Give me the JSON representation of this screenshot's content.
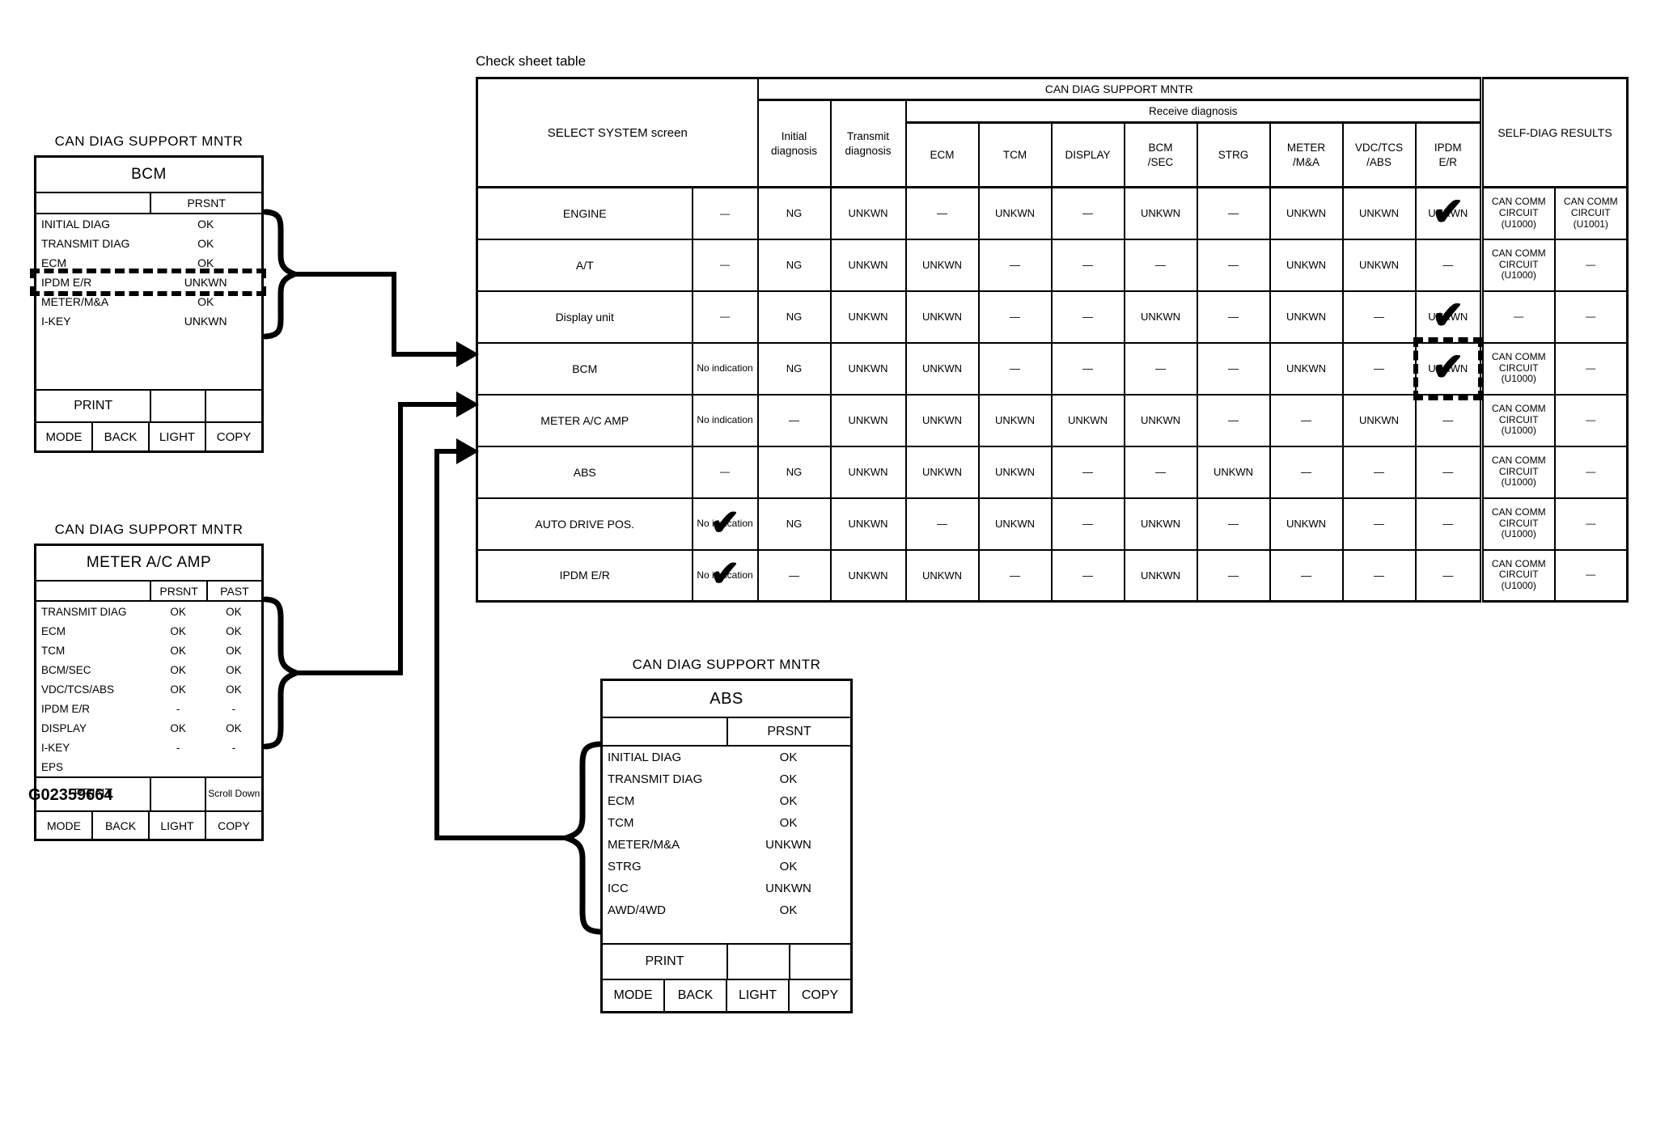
{
  "figure_code": "G02359664",
  "softkeys": [
    "MODE",
    "BACK",
    "LIGHT",
    "COPY"
  ],
  "checksheet": {
    "title": "Check sheet table",
    "header": {
      "select_system": "SELECT SYSTEM screen",
      "can_diag": "CAN DIAG SUPPORT MNTR",
      "initial": "Initial diagnosis",
      "transmit": "Transmit diagnosis",
      "receive": "Receive diagnosis",
      "self_diag": "SELF-DIAG RESULTS"
    },
    "receive_columns": [
      "ECM",
      "TCM",
      "DISPLAY",
      "BCM\n/SEC",
      "STRG",
      "METER\n/M&A",
      "VDC/TCS\n/ABS",
      "IPDM\nE/R"
    ],
    "rows": [
      {
        "system": "ENGINE",
        "indication": "—",
        "values": [
          "NG",
          "UNKWN",
          "—",
          "UNKWN",
          "—",
          "UNKWN",
          "—",
          "UNKWN",
          "UNKWN",
          "UNKWN"
        ],
        "checked_value": 9,
        "self_diag": [
          "CAN COMM\nCIRCUIT\n(U1000)",
          "CAN COMM\nCIRCUIT\n(U1001)"
        ]
      },
      {
        "system": "A/T",
        "indication": "—",
        "values": [
          "NG",
          "UNKWN",
          "UNKWN",
          "—",
          "—",
          "—",
          "—",
          "UNKWN",
          "UNKWN",
          "—"
        ],
        "self_diag": [
          "CAN COMM\nCIRCUIT\n(U1000)",
          "—"
        ]
      },
      {
        "system": "Display unit",
        "indication": "—",
        "values": [
          "NG",
          "UNKWN",
          "UNKWN",
          "—",
          "—",
          "UNKWN",
          "—",
          "UNKWN",
          "—",
          "UNKWN"
        ],
        "checked_value": 9,
        "self_diag": [
          "—",
          "—"
        ]
      },
      {
        "system": "BCM",
        "indication": "No indication",
        "values": [
          "NG",
          "UNKWN",
          "UNKWN",
          "—",
          "—",
          "—",
          "—",
          "UNKWN",
          "—",
          "UNKWN"
        ],
        "checked_value": 9,
        "dashed_value": 9,
        "self_diag": [
          "CAN COMM\nCIRCUIT\n(U1000)",
          "—"
        ]
      },
      {
        "system": "METER A/C AMP",
        "indication": "No indication",
        "values": [
          "—",
          "UNKWN",
          "UNKWN",
          "UNKWN",
          "UNKWN",
          "UNKWN",
          "—",
          "—",
          "UNKWN",
          "—"
        ],
        "self_diag": [
          "CAN COMM\nCIRCUIT\n(U1000)",
          "—"
        ]
      },
      {
        "system": "ABS",
        "indication": "—",
        "values": [
          "NG",
          "UNKWN",
          "UNKWN",
          "UNKWN",
          "—",
          "—",
          "UNKWN",
          "—",
          "—",
          "—"
        ],
        "self_diag": [
          "CAN COMM\nCIRCUIT\n(U1000)",
          "—"
        ]
      },
      {
        "system": "AUTO DRIVE POS.",
        "indication": "No indication",
        "indication_checked": true,
        "values": [
          "NG",
          "UNKWN",
          "—",
          "UNKWN",
          "—",
          "UNKWN",
          "—",
          "UNKWN",
          "—",
          "—"
        ],
        "self_diag": [
          "CAN COMM\nCIRCUIT\n(U1000)",
          "—"
        ]
      },
      {
        "system": "IPDM E/R",
        "indication": "No indication",
        "indication_checked": true,
        "values": [
          "—",
          "UNKWN",
          "UNKWN",
          "—",
          "—",
          "UNKWN",
          "—",
          "—",
          "—",
          "—"
        ],
        "self_diag": [
          "CAN COMM\nCIRCUIT\n(U1000)",
          "—"
        ]
      }
    ]
  },
  "bcm_screen": {
    "title": "CAN DIAG SUPPORT MNTR",
    "system": "BCM",
    "col_header": "PRSNT",
    "print_label": "PRINT",
    "items": [
      {
        "label": "INITIAL DIAG",
        "prsnt": "OK"
      },
      {
        "label": "TRANSMIT DIAG",
        "prsnt": "OK"
      },
      {
        "label": "ECM",
        "prsnt": "OK"
      },
      {
        "label": "IPDM E/R",
        "prsnt": "UNKWN",
        "highlight": true
      },
      {
        "label": "METER/M&A",
        "prsnt": "OK"
      },
      {
        "label": "I-KEY",
        "prsnt": "UNKWN"
      },
      {
        "label": "",
        "prsnt": ""
      },
      {
        "label": "",
        "prsnt": ""
      },
      {
        "label": "",
        "prsnt": ""
      }
    ]
  },
  "meter_screen": {
    "title": "CAN DIAG SUPPORT MNTR",
    "system": "METER A/C AMP",
    "col_headers": [
      "PRSNT",
      "PAST"
    ],
    "print_label": "PRINT",
    "scroll_label": "Scroll Down",
    "items": [
      {
        "label": "TRANSMIT DIAG",
        "prsnt": "OK",
        "past": "OK"
      },
      {
        "label": "ECM",
        "prsnt": "OK",
        "past": "OK"
      },
      {
        "label": "TCM",
        "prsnt": "OK",
        "past": "OK"
      },
      {
        "label": "BCM/SEC",
        "prsnt": "OK",
        "past": "OK"
      },
      {
        "label": "VDC/TCS/ABS",
        "prsnt": "OK",
        "past": "OK"
      },
      {
        "label": "IPDM E/R",
        "prsnt": "-",
        "past": "-"
      },
      {
        "label": "DISPLAY",
        "prsnt": "OK",
        "past": "OK"
      },
      {
        "label": "I-KEY",
        "prsnt": "-",
        "past": "-"
      },
      {
        "label": "EPS",
        "prsnt": "",
        "past": ""
      }
    ]
  },
  "abs_screen": {
    "title": "CAN DIAG SUPPORT MNTR",
    "system": "ABS",
    "col_header": "PRSNT",
    "print_label": "PRINT",
    "items": [
      {
        "label": "INITIAL DIAG",
        "prsnt": "OK"
      },
      {
        "label": "TRANSMIT DIAG",
        "prsnt": "OK"
      },
      {
        "label": "ECM",
        "prsnt": "OK"
      },
      {
        "label": "TCM",
        "prsnt": "OK"
      },
      {
        "label": "METER/M&A",
        "prsnt": "UNKWN"
      },
      {
        "label": "STRG",
        "prsnt": "OK"
      },
      {
        "label": "ICC",
        "prsnt": "UNKWN"
      },
      {
        "label": "AWD/4WD",
        "prsnt": "OK"
      },
      {
        "label": "",
        "prsnt": ""
      }
    ]
  }
}
